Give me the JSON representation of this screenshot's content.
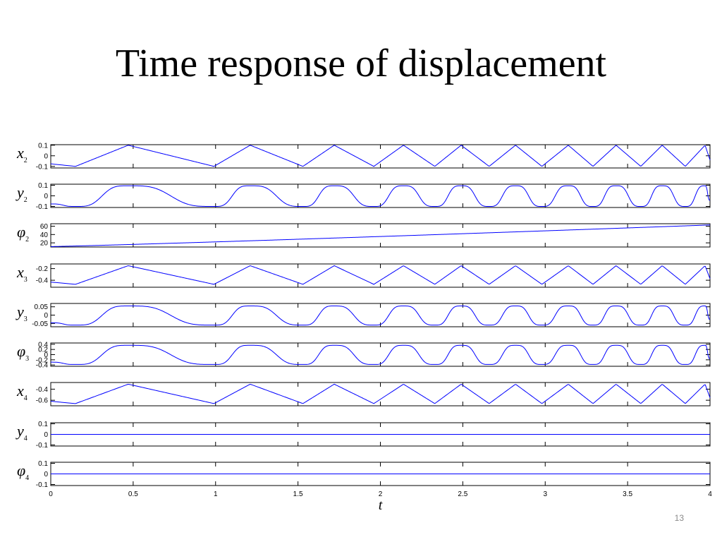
{
  "slide": {
    "title": "Time response of displacement",
    "page_number": "13"
  },
  "chart_data": {
    "type": "line",
    "line_color": "#0000ff",
    "axis_color": "#000000",
    "xlim": [
      0,
      4
    ],
    "xlabel": "t",
    "xticks": [
      0,
      0.5,
      1,
      1.5,
      2,
      2.5,
      3,
      3.5,
      4
    ],
    "xtick_labels": [
      "0",
      "0.5",
      "1",
      "1.5",
      "2",
      "2.5",
      "3",
      "3.5",
      "4"
    ],
    "grid": false,
    "panels": [
      {
        "label_symbol": "x",
        "label_sub": "2",
        "ylim": [
          -0.115,
          0.105
        ],
        "yticks": [
          0.1,
          0,
          -0.1
        ],
        "ytick_labels": [
          "0.1",
          "0",
          "-0.1"
        ],
        "signal": "triangle",
        "hi": 0.1,
        "lo": -0.1
      },
      {
        "label_symbol": "y",
        "label_sub": "2",
        "ylim": [
          -0.11,
          0.11
        ],
        "yticks": [
          0.1,
          0,
          -0.1
        ],
        "ytick_labels": [
          "0.1",
          "0",
          "-0.1"
        ],
        "signal": "rounded",
        "hi": 0.095,
        "lo": -0.1
      },
      {
        "label_symbol": "φ",
        "label_sub": "2",
        "ylim": [
          10,
          66
        ],
        "yticks": [
          60,
          40,
          20
        ],
        "ytick_labels": [
          "60",
          "40",
          "20"
        ],
        "signal": "ramp",
        "start": 11,
        "end": 63
      },
      {
        "label_symbol": "x",
        "label_sub": "3",
        "ylim": [
          -0.52,
          -0.12
        ],
        "yticks": [
          -0.2,
          -0.4
        ],
        "ytick_labels": [
          "-0.2",
          "-0.4"
        ],
        "signal": "triangle",
        "hi": -0.15,
        "lo": -0.47
      },
      {
        "label_symbol": "y",
        "label_sub": "3",
        "ylim": [
          -0.07,
          0.07
        ],
        "yticks": [
          0.05,
          0,
          -0.05
        ],
        "ytick_labels": [
          "0.05",
          "0",
          "-0.05"
        ],
        "signal": "rounded",
        "hi": 0.055,
        "lo": -0.06
      },
      {
        "label_symbol": "φ",
        "label_sub": "3",
        "ylim": [
          -0.45,
          0.45
        ],
        "yticks": [
          0.4,
          0.2,
          0,
          -0.2,
          -0.4
        ],
        "ytick_labels": [
          "0.4",
          "0.2",
          "0",
          "-0.2",
          "-0.4"
        ],
        "signal": "rounded",
        "hi": 0.36,
        "lo": -0.38
      },
      {
        "label_symbol": "x",
        "label_sub": "4",
        "ylim": [
          -0.7,
          -0.28
        ],
        "yticks": [
          -0.4,
          -0.6
        ],
        "ytick_labels": [
          "-0.4",
          "-0.6"
        ],
        "signal": "triangle",
        "hi": -0.31,
        "lo": -0.66
      },
      {
        "label_symbol": "y",
        "label_sub": "4",
        "ylim": [
          -0.11,
          0.11
        ],
        "yticks": [
          0.1,
          0,
          -0.1
        ],
        "ytick_labels": [
          "0.1",
          "0",
          "-0.1"
        ],
        "signal": "flat",
        "value": 0
      },
      {
        "label_symbol": "φ",
        "label_sub": "4",
        "ylim": [
          -0.11,
          0.11
        ],
        "yticks": [
          0.1,
          0,
          -0.1
        ],
        "ytick_labels": [
          "0.1",
          "0",
          "-0.1"
        ],
        "signal": "flat",
        "value": 0,
        "show_xtick_labels": true
      }
    ],
    "peak_times": [
      0.47,
      1.21,
      1.72,
      2.14,
      2.49,
      2.82,
      3.14,
      3.43,
      3.71,
      3.97
    ],
    "trough_times": [
      0.15,
      0.99,
      1.53,
      1.96,
      2.33,
      2.66,
      2.98,
      3.29,
      3.58,
      3.85
    ]
  }
}
